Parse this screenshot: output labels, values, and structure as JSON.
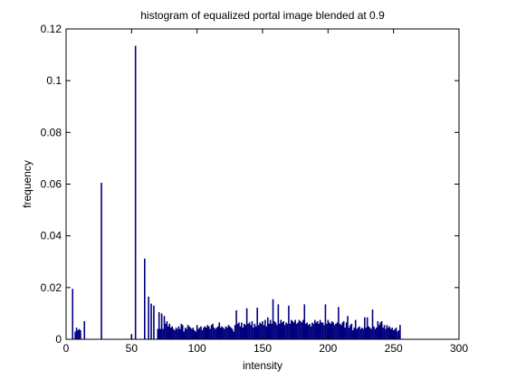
{
  "chart_data": {
    "type": "bar",
    "title": "histogram of equalized portal image blended at 0.9",
    "xlabel": "intensity",
    "ylabel": "frequency",
    "xlim": [
      0,
      300
    ],
    "ylim": [
      0,
      0.12
    ],
    "xticks": [
      0,
      50,
      100,
      150,
      200,
      250,
      300
    ],
    "xtick_labels": [
      "0",
      "50",
      "100",
      "150",
      "200",
      "250",
      "300"
    ],
    "yticks": [
      0,
      0.02,
      0.04,
      0.06,
      0.08,
      0.1,
      0.12
    ],
    "ytick_labels": [
      "0",
      "0.02",
      "0.04",
      "0.06",
      "0.08",
      "0.1",
      "0.12"
    ],
    "grid": false,
    "bar_color": "#00007f",
    "points": [
      [
        5,
        0.0195
      ],
      [
        7,
        0.003
      ],
      [
        8,
        0.0045
      ],
      [
        9,
        0.0035
      ],
      [
        10,
        0.004
      ],
      [
        11,
        0.0035
      ],
      [
        14,
        0.007
      ],
      [
        27,
        0.0605
      ],
      [
        50,
        0.002
      ],
      [
        53,
        0.1135
      ],
      [
        60,
        0.0312
      ],
      [
        63,
        0.0165
      ],
      [
        65,
        0.0138
      ],
      [
        67,
        0.013
      ],
      [
        70,
        0.004
      ],
      [
        71,
        0.0105
      ],
      [
        72,
        0.004
      ],
      [
        73,
        0.01
      ],
      [
        74,
        0.004
      ],
      [
        75,
        0.009
      ],
      [
        76,
        0.006
      ],
      [
        77,
        0.007
      ],
      [
        78,
        0.005
      ],
      [
        79,
        0.006
      ],
      [
        80,
        0.0045
      ],
      [
        81,
        0.005
      ],
      [
        82,
        0.004
      ],
      [
        83,
        0.0035
      ],
      [
        84,
        0.0045
      ],
      [
        85,
        0.004
      ],
      [
        86,
        0.005
      ],
      [
        87,
        0.004
      ],
      [
        88,
        0.006
      ],
      [
        89,
        0.0055
      ],
      [
        90,
        0.003
      ],
      [
        91,
        0.0045
      ],
      [
        92,
        0.004
      ],
      [
        93,
        0.0055
      ],
      [
        94,
        0.005
      ],
      [
        95,
        0.0045
      ],
      [
        96,
        0.004
      ],
      [
        97,
        0.0045
      ],
      [
        98,
        0.0035
      ],
      [
        99,
        0.003
      ],
      [
        100,
        0.0055
      ],
      [
        101,
        0.004
      ],
      [
        102,
        0.0045
      ],
      [
        103,
        0.005
      ],
      [
        104,
        0.0035
      ],
      [
        105,
        0.0045
      ],
      [
        106,
        0.005
      ],
      [
        107,
        0.0045
      ],
      [
        108,
        0.0055
      ],
      [
        109,
        0.005
      ],
      [
        110,
        0.004
      ],
      [
        111,
        0.0055
      ],
      [
        112,
        0.006
      ],
      [
        113,
        0.0045
      ],
      [
        114,
        0.004
      ],
      [
        115,
        0.0045
      ],
      [
        116,
        0.005
      ],
      [
        117,
        0.0065
      ],
      [
        118,
        0.0045
      ],
      [
        119,
        0.005
      ],
      [
        120,
        0.0045
      ],
      [
        121,
        0.004
      ],
      [
        122,
        0.005
      ],
      [
        123,
        0.0045
      ],
      [
        124,
        0.0055
      ],
      [
        125,
        0.005
      ],
      [
        126,
        0.0045
      ],
      [
        127,
        0.004
      ],
      [
        128,
        0.003
      ],
      [
        129,
        0.0055
      ],
      [
        130,
        0.0112
      ],
      [
        131,
        0.006
      ],
      [
        132,
        0.0065
      ],
      [
        133,
        0.005
      ],
      [
        134,
        0.0065
      ],
      [
        135,
        0.0045
      ],
      [
        136,
        0.006
      ],
      [
        137,
        0.0055
      ],
      [
        138,
        0.012
      ],
      [
        139,
        0.006
      ],
      [
        140,
        0.0065
      ],
      [
        141,
        0.0055
      ],
      [
        142,
        0.007
      ],
      [
        143,
        0.0045
      ],
      [
        144,
        0.006
      ],
      [
        145,
        0.005
      ],
      [
        146,
        0.0122
      ],
      [
        147,
        0.0055
      ],
      [
        148,
        0.0065
      ],
      [
        149,
        0.006
      ],
      [
        150,
        0.007
      ],
      [
        151,
        0.0055
      ],
      [
        152,
        0.0075
      ],
      [
        153,
        0.005
      ],
      [
        154,
        0.0085
      ],
      [
        155,
        0.006
      ],
      [
        156,
        0.0075
      ],
      [
        157,
        0.006
      ],
      [
        158,
        0.0155
      ],
      [
        159,
        0.007
      ],
      [
        160,
        0.0065
      ],
      [
        161,
        0.0055
      ],
      [
        162,
        0.0135
      ],
      [
        163,
        0.006
      ],
      [
        164,
        0.0075
      ],
      [
        165,
        0.0065
      ],
      [
        166,
        0.007
      ],
      [
        167,
        0.0055
      ],
      [
        168,
        0.0065
      ],
      [
        169,
        0.006
      ],
      [
        170,
        0.013
      ],
      [
        171,
        0.006
      ],
      [
        172,
        0.0075
      ],
      [
        173,
        0.007
      ],
      [
        174,
        0.0065
      ],
      [
        175,
        0.0075
      ],
      [
        176,
        0.006
      ],
      [
        177,
        0.0065
      ],
      [
        178,
        0.0075
      ],
      [
        179,
        0.007
      ],
      [
        180,
        0.0065
      ],
      [
        181,
        0.0075
      ],
      [
        182,
        0.0135
      ],
      [
        183,
        0.006
      ],
      [
        184,
        0.0065
      ],
      [
        185,
        0.0055
      ],
      [
        186,
        0.006
      ],
      [
        187,
        0.005
      ],
      [
        188,
        0.0065
      ],
      [
        189,
        0.006
      ],
      [
        190,
        0.0075
      ],
      [
        191,
        0.0065
      ],
      [
        192,
        0.007
      ],
      [
        193,
        0.006
      ],
      [
        194,
        0.0075
      ],
      [
        195,
        0.0065
      ],
      [
        196,
        0.0065
      ],
      [
        197,
        0.0055
      ],
      [
        198,
        0.0135
      ],
      [
        199,
        0.006
      ],
      [
        200,
        0.0075
      ],
      [
        201,
        0.0065
      ],
      [
        202,
        0.006
      ],
      [
        203,
        0.007
      ],
      [
        204,
        0.0065
      ],
      [
        205,
        0.0055
      ],
      [
        206,
        0.006
      ],
      [
        207,
        0.0065
      ],
      [
        208,
        0.0125
      ],
      [
        209,
        0.006
      ],
      [
        210,
        0.0055
      ],
      [
        211,
        0.0065
      ],
      [
        212,
        0.007
      ],
      [
        213,
        0.0045
      ],
      [
        214,
        0.0065
      ],
      [
        215,
        0.009
      ],
      [
        216,
        0.0045
      ],
      [
        217,
        0.0055
      ],
      [
        218,
        0.006
      ],
      [
        219,
        0.0035
      ],
      [
        220,
        0.0045
      ],
      [
        221,
        0.0075
      ],
      [
        222,
        0.004
      ],
      [
        223,
        0.0045
      ],
      [
        224,
        0.005
      ],
      [
        225,
        0.004
      ],
      [
        226,
        0.0045
      ],
      [
        227,
        0.004
      ],
      [
        228,
        0.0085
      ],
      [
        229,
        0.0045
      ],
      [
        230,
        0.0085
      ],
      [
        231,
        0.005
      ],
      [
        232,
        0.0045
      ],
      [
        233,
        0.004
      ],
      [
        234,
        0.0115
      ],
      [
        235,
        0.005
      ],
      [
        236,
        0.004
      ],
      [
        237,
        0.0045
      ],
      [
        238,
        0.007
      ],
      [
        239,
        0.0055
      ],
      [
        240,
        0.0065
      ],
      [
        241,
        0.007
      ],
      [
        242,
        0.0045
      ],
      [
        243,
        0.0055
      ],
      [
        244,
        0.004
      ],
      [
        245,
        0.0055
      ],
      [
        246,
        0.0045
      ],
      [
        247,
        0.005
      ],
      [
        248,
        0.004
      ],
      [
        249,
        0.0045
      ],
      [
        250,
        0.0035
      ],
      [
        251,
        0.004
      ],
      [
        252,
        0.0045
      ],
      [
        253,
        0.003
      ],
      [
        254,
        0.0035
      ],
      [
        255,
        0.0055
      ]
    ]
  }
}
